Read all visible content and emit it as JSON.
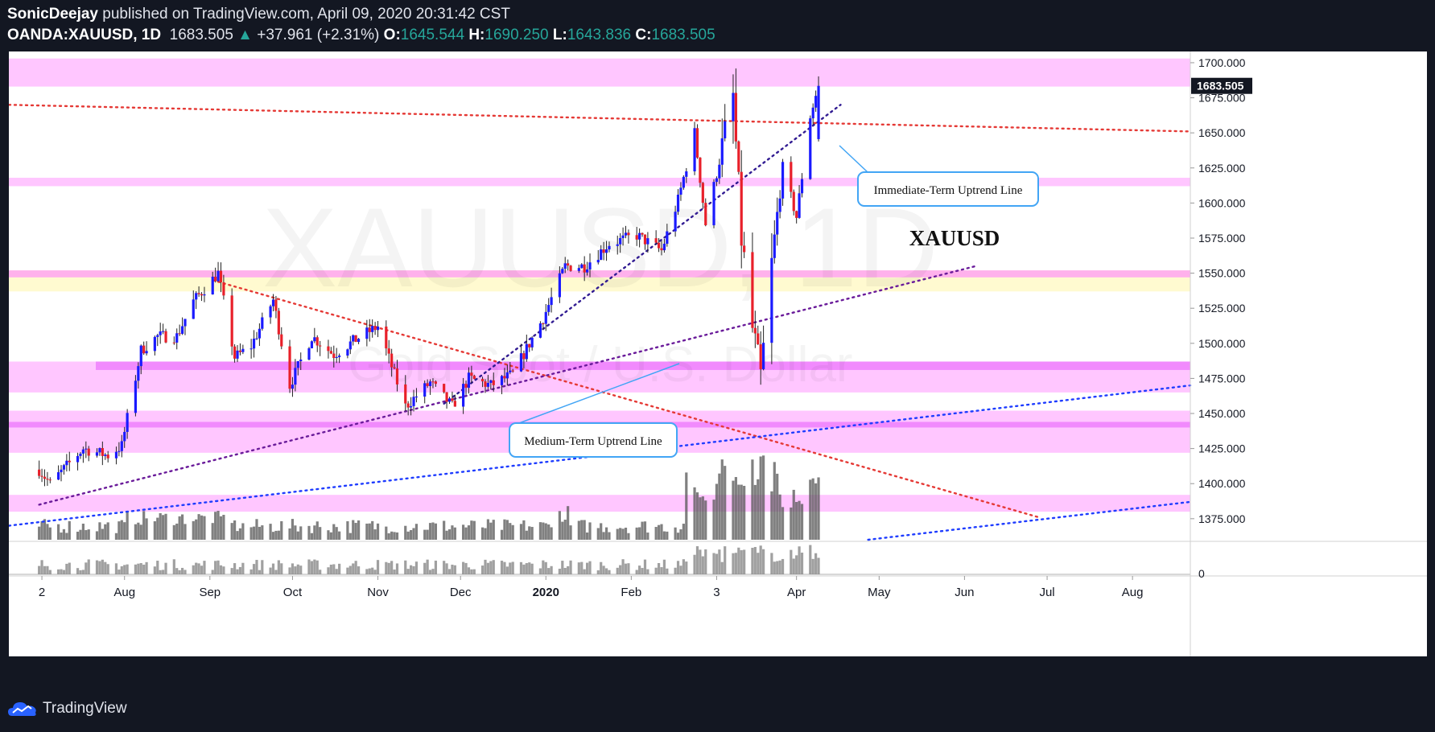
{
  "header": {
    "author": "SonicDeejay",
    "published_text": "published on TradingView.com, April 09, 2020 20:31:42 CST",
    "symbol": "OANDA:XAUUSD, 1D",
    "last": "1683.505",
    "change": "+37.961 (+2.31%)",
    "open_label": "O:",
    "open": "1645.544",
    "high_label": "H:",
    "high": "1690.250",
    "low_label": "L:",
    "low": "1643.836",
    "close_label": "C:",
    "close": "1683.505"
  },
  "footer": {
    "brand": "TradingView"
  },
  "chart_data": {
    "type": "candlestick",
    "watermark": "XAUUSD, 1D",
    "watermark_sub": "Gold Spot / U.S. Dollar",
    "title_annotation": "XAUUSD",
    "ylim": [
      1360,
      1708
    ],
    "y_ticks": [
      "1700.000",
      "1675.000",
      "1650.000",
      "1625.000",
      "1600.000",
      "1575.000",
      "1550.000",
      "1525.000",
      "1500.000",
      "1475.000",
      "1450.000",
      "1425.000",
      "1400.000",
      "1375.000"
    ],
    "last_price_label": "1683.505",
    "volume_axis_tick": "0",
    "x_labels": [
      "2",
      "Aug",
      "Sep",
      "Oct",
      "Nov",
      "Dec",
      "2020",
      "Feb",
      "3",
      "Apr",
      "May",
      "Jun",
      "Jul",
      "Aug"
    ],
    "price_points": [
      [
        "2019-07-01",
        1410
      ],
      [
        "2019-07-05",
        1400
      ],
      [
        "2019-07-17",
        1425
      ],
      [
        "2019-07-26",
        1420
      ],
      [
        "2019-07-31",
        1427
      ],
      [
        "2019-08-07",
        1495
      ],
      [
        "2019-08-13",
        1505
      ],
      [
        "2019-08-20",
        1505
      ],
      [
        "2019-08-26",
        1530
      ],
      [
        "2019-09-04",
        1550
      ],
      [
        "2019-09-10",
        1490
      ],
      [
        "2019-09-16",
        1498
      ],
      [
        "2019-09-24",
        1531
      ],
      [
        "2019-09-30",
        1470
      ],
      [
        "2019-10-08",
        1505
      ],
      [
        "2019-10-16",
        1492
      ],
      [
        "2019-10-25",
        1504
      ],
      [
        "2019-11-01",
        1512
      ],
      [
        "2019-11-11",
        1455
      ],
      [
        "2019-11-20",
        1472
      ],
      [
        "2019-11-28",
        1455
      ],
      [
        "2019-12-04",
        1475
      ],
      [
        "2019-12-12",
        1470
      ],
      [
        "2019-12-20",
        1478
      ],
      [
        "2019-12-31",
        1518
      ],
      [
        "2020-01-08",
        1555
      ],
      [
        "2020-01-15",
        1555
      ],
      [
        "2020-01-24",
        1571
      ],
      [
        "2020-02-03",
        1577
      ],
      [
        "2020-02-12",
        1566
      ],
      [
        "2020-02-18",
        1602
      ],
      [
        "2020-02-24",
        1650
      ],
      [
        "2020-02-28",
        1585
      ],
      [
        "2020-03-09",
        1675
      ],
      [
        "2020-03-12",
        1575
      ],
      [
        "2020-03-16",
        1510
      ],
      [
        "2020-03-19",
        1475
      ],
      [
        "2020-03-23",
        1555
      ],
      [
        "2020-03-27",
        1625
      ],
      [
        "2020-04-01",
        1590
      ],
      [
        "2020-04-06",
        1662
      ],
      [
        "2020-04-09",
        1683.505
      ]
    ],
    "support_zones": [
      [
        1683,
        1703
      ],
      [
        1612,
        1618
      ],
      [
        1537,
        1552
      ],
      [
        1465,
        1487
      ],
      [
        1422,
        1452
      ],
      [
        1380,
        1392
      ]
    ],
    "trendlines": [
      {
        "from": [
          "2019-06-20",
          1670
        ],
        "to": [
          "2020-08-22",
          1651
        ],
        "color": "#e53935"
      },
      {
        "from": [
          "2019-09-02",
          1545
        ],
        "to": [
          "2020-06-28",
          1376
        ],
        "color": "#e53935"
      },
      {
        "from": [
          "2019-07-01",
          1385
        ],
        "to": [
          "2020-06-05",
          1555
        ],
        "color": "#6a1b9a"
      },
      {
        "from": [
          "2019-11-25",
          1457
        ],
        "to": [
          "2020-04-17",
          1670
        ],
        "color": "#311b92"
      },
      {
        "from": [
          "2019-06-20",
          1370
        ],
        "to": [
          "2020-08-22",
          1470
        ],
        "color": "#1e3cff"
      },
      {
        "from": [
          "2020-04-27",
          1360
        ],
        "to": [
          "2020-08-22",
          1387
        ],
        "color": "#1e3cff"
      }
    ],
    "callouts": [
      {
        "text": "Immediate-Term Uptrend Line"
      },
      {
        "text": "Medium-Term Uptrend Line"
      }
    ]
  }
}
